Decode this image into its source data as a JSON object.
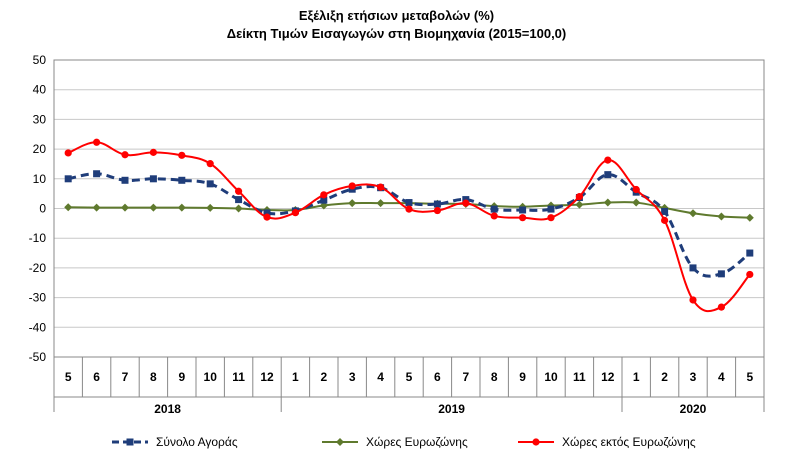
{
  "chart_data": {
    "type": "line",
    "title": "Εξέλιξη ετήσιων μεταβολών (%)",
    "subtitle": "Δείκτη Τιμών Εισαγωγών στη Βιομηχανία (2015=100,0)",
    "ylim": [
      -50,
      50
    ],
    "yticks": [
      50,
      40,
      30,
      20,
      10,
      0,
      -10,
      -20,
      -30,
      -40,
      -50
    ],
    "categories": [
      "5",
      "6",
      "7",
      "8",
      "9",
      "10",
      "11",
      "12",
      "1",
      "2",
      "3",
      "4",
      "5",
      "6",
      "7",
      "8",
      "9",
      "10",
      "11",
      "12",
      "1",
      "2",
      "3",
      "4",
      "5"
    ],
    "year_groups": [
      {
        "label": "2018",
        "count": 8
      },
      {
        "label": "2019",
        "count": 12
      },
      {
        "label": "2020",
        "count": 5
      }
    ],
    "grid": "horizontal",
    "legend_position": "bottom",
    "series": [
      {
        "name": "Σύνολο Αγοράς",
        "color": "#1f3d7a",
        "style": "dashed",
        "marker": "square",
        "values": [
          10,
          11.7,
          9.5,
          10,
          9.5,
          8.3,
          3,
          -1.5,
          -0.8,
          2.8,
          6.5,
          7,
          2,
          1.5,
          3,
          -0.2,
          -0.5,
          -0.2,
          3.7,
          11.4,
          5.5,
          -1,
          -20,
          -22,
          -15
        ]
      },
      {
        "name": "Χώρες Ευρωζώνης",
        "color": "#5f7a2e",
        "style": "solid",
        "marker": "diamond",
        "values": [
          0.4,
          0.3,
          0.3,
          0.3,
          0.3,
          0.2,
          0,
          -0.5,
          -0.5,
          1,
          1.8,
          1.8,
          1.8,
          1.6,
          1.5,
          0.8,
          0.6,
          1,
          1.3,
          2,
          2,
          0.2,
          -1.6,
          -2.7,
          -3.1
        ]
      },
      {
        "name": "Χώρες εκτός Ευρωζώνης",
        "color": "#ff0000",
        "style": "solid",
        "marker": "circle",
        "values": [
          18.7,
          22.3,
          18.1,
          18.9,
          17.9,
          15.1,
          5.8,
          -2.9,
          -1.4,
          4.6,
          7.6,
          7.2,
          -0.2,
          -0.7,
          1.8,
          -2.5,
          -3.1,
          -3.1,
          4,
          16.3,
          6.4,
          -4,
          -30.8,
          -33.2,
          -22.2
        ]
      }
    ]
  }
}
